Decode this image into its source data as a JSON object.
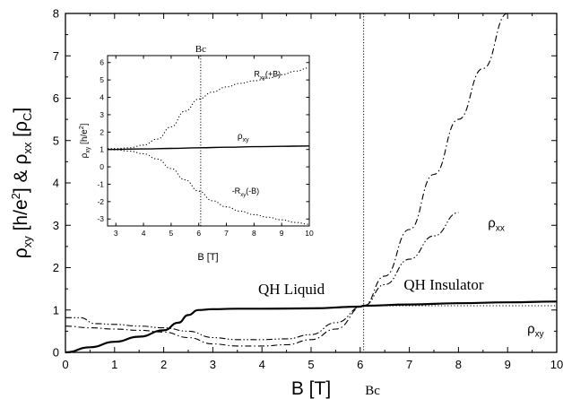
{
  "chart_data": [
    {
      "type": "line",
      "xlabel": "B [T]",
      "ylabel_parts": {
        "a": "ρ",
        "a_sub": "xy",
        "b": " [h/e",
        "b_sup": "2",
        "c": "] & ρ",
        "c_sub": "xx",
        "d": " [ρ",
        "d_sub": "C",
        "e": "]"
      },
      "xlim": [
        0,
        10
      ],
      "ylim": [
        0,
        8
      ],
      "xticks": [
        "0",
        "1",
        "2",
        "3",
        "4",
        "5",
        "6",
        "7",
        "8",
        "9",
        "10"
      ],
      "yticks": [
        "0",
        "1",
        "2",
        "3",
        "4",
        "5",
        "6",
        "7",
        "8"
      ],
      "critical_field": {
        "x": 6.07,
        "label": "Bc"
      },
      "annotations": [
        {
          "text": "QH Liquid",
          "x": 4.6,
          "y": 1.38
        },
        {
          "text": "QH Insulator",
          "x": 7.7,
          "y": 1.48
        }
      ],
      "series_labels": {
        "rho_xx": {
          "base": "ρ",
          "sub": "xx",
          "x": 8.6,
          "y": 2.95
        },
        "rho_xy": {
          "base": "ρ",
          "sub": "xy",
          "x": 9.4,
          "y": 0.45
        }
      },
      "series": [
        {
          "name": "ρxy",
          "style": "solid",
          "x": [
            0,
            0.5,
            1,
            1.5,
            2,
            2.3,
            2.5,
            2.7,
            3,
            3.5,
            4,
            5,
            6,
            6.07,
            7,
            8,
            9,
            10
          ],
          "y": [
            0,
            0.12,
            0.25,
            0.37,
            0.52,
            0.7,
            0.88,
            1.0,
            1.02,
            1.03,
            1.03,
            1.04,
            1.08,
            1.1,
            1.13,
            1.16,
            1.18,
            1.2
          ]
        },
        {
          "name": "ρxy",
          "style": "dotted",
          "x": [
            6.07,
            7,
            8,
            9,
            10
          ],
          "y": [
            1.1,
            1.1,
            1.1,
            1.1,
            1.1
          ]
        },
        {
          "name": "ρxx",
          "style": "dashdot",
          "x": [
            0,
            0.5,
            1,
            1.5,
            2,
            2.5,
            3,
            3.5,
            4,
            4.5,
            5,
            5.5,
            6.07,
            6.5,
            7,
            7.5,
            8,
            8.5,
            9
          ],
          "y": [
            0.62,
            0.58,
            0.55,
            0.52,
            0.48,
            0.35,
            0.2,
            0.15,
            0.15,
            0.18,
            0.3,
            0.55,
            1.1,
            1.8,
            2.9,
            4.2,
            5.5,
            6.7,
            8.0
          ]
        },
        {
          "name": "ρxx",
          "style": "dashdotdot",
          "x": [
            0,
            0.3,
            0.6,
            1,
            1.5,
            2,
            2.5,
            3,
            3.5,
            4,
            4.5,
            5,
            5.5,
            6.07,
            6.5,
            7,
            7.5,
            8
          ],
          "y": [
            0.82,
            0.82,
            0.68,
            0.66,
            0.62,
            0.58,
            0.5,
            0.35,
            0.3,
            0.3,
            0.32,
            0.42,
            0.7,
            1.1,
            1.6,
            2.2,
            2.75,
            3.3
          ]
        }
      ]
    },
    {
      "type": "line",
      "xlabel": "B [T]",
      "ylabel_parts": {
        "a": "ρ",
        "a_sub": "xy",
        "b": " [h/e",
        "b_sup": "2",
        "c": "]"
      },
      "xlim": [
        2.7,
        10
      ],
      "ylim": [
        -3.4,
        6.4
      ],
      "xticks": [
        3,
        4,
        5,
        6,
        7,
        8,
        9,
        10
      ],
      "yticks": [
        -3,
        -2,
        -1,
        0,
        1,
        2,
        3,
        4,
        5,
        6
      ],
      "critical_field": {
        "x": 6.07,
        "label": "Bc"
      },
      "series_labels": {
        "rxy_plus": {
          "base": "R",
          "sub": "xy",
          "suffix": "(+B)",
          "x": 8.0,
          "y": 5.2
        },
        "rho_xy": {
          "base": "ρ",
          "sub": "xy",
          "x": 7.4,
          "y": 1.6
        },
        "rxy_minus": {
          "prefix": "-R",
          "sub": "xy",
          "suffix": "(-B)",
          "x": 7.2,
          "y": -1.55
        }
      },
      "series": [
        {
          "name": "Rxy(+B)",
          "style": "dotted",
          "x": [
            2.7,
            3,
            3.5,
            4,
            4.5,
            5,
            5.5,
            6,
            6.5,
            7,
            7.5,
            8,
            8.5,
            9,
            9.5,
            10
          ],
          "y": [
            1.05,
            1.05,
            1.1,
            1.25,
            1.6,
            2.3,
            3.2,
            3.9,
            4.3,
            4.6,
            4.8,
            4.95,
            5.1,
            5.3,
            5.5,
            5.7
          ]
        },
        {
          "name": "ρxy",
          "style": "solid",
          "x": [
            2.7,
            4,
            5,
            6,
            7,
            8,
            9,
            10
          ],
          "y": [
            1.0,
            1.03,
            1.06,
            1.1,
            1.13,
            1.16,
            1.18,
            1.2
          ]
        },
        {
          "name": "-Rxy(-B)",
          "style": "dotted",
          "x": [
            2.7,
            3,
            3.5,
            4,
            4.5,
            5,
            5.5,
            6,
            6.5,
            7,
            7.5,
            8,
            8.5,
            9,
            9.5,
            10
          ],
          "y": [
            1.0,
            0.98,
            0.9,
            0.75,
            0.45,
            -0.1,
            -0.75,
            -1.4,
            -1.95,
            -2.3,
            -2.55,
            -2.75,
            -2.9,
            -3.05,
            -3.2,
            -3.3
          ]
        }
      ]
    }
  ]
}
